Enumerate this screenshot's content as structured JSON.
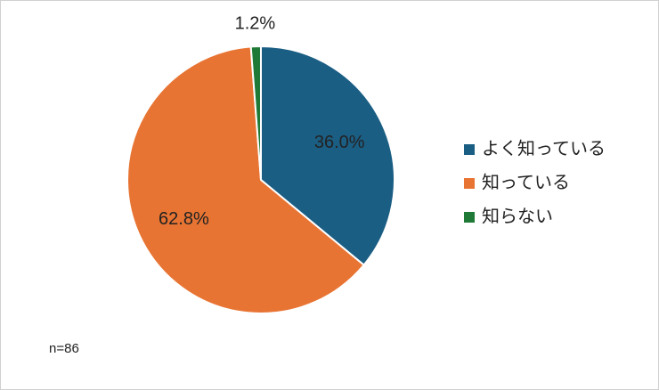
{
  "chart_data": {
    "type": "pie",
    "categories": [
      "よく知っている",
      "知っている",
      "知らない"
    ],
    "values": [
      36.0,
      62.8,
      1.2
    ],
    "value_labels": [
      "36.0%",
      "62.8%",
      "1.2%"
    ],
    "colors": [
      "#1b5e84",
      "#e87433",
      "#1e7a36"
    ],
    "legend": "right",
    "annotation": "n=86"
  }
}
